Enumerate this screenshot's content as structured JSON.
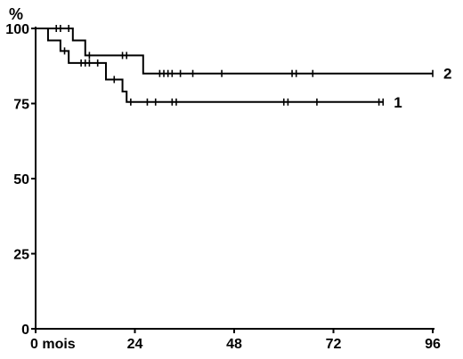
{
  "chart_data": {
    "type": "line",
    "title": "",
    "ylabel": "%",
    "xlabel": "",
    "xlim": [
      0,
      96
    ],
    "ylim": [
      0,
      100
    ],
    "x_ticks": [
      0,
      24,
      48,
      72,
      96
    ],
    "x_tick_labels": [
      "0 mois",
      "24",
      "48",
      "72",
      "96"
    ],
    "y_ticks": [
      0,
      25,
      50,
      75,
      100
    ],
    "y_tick_labels": [
      "0",
      "25",
      "50",
      "75",
      "100"
    ],
    "grid": false,
    "legend": "inline end-of-line labels",
    "series": [
      {
        "name": "1",
        "steps": [
          [
            0,
            100
          ],
          [
            3,
            96
          ],
          [
            6,
            92.5
          ],
          [
            8,
            88.5
          ],
          [
            17,
            83
          ],
          [
            21,
            79
          ],
          [
            22,
            75.5
          ],
          [
            84,
            75.5
          ]
        ],
        "censored": [
          7,
          11,
          12,
          13,
          15,
          19,
          23,
          27,
          29,
          33,
          34,
          60,
          61,
          68,
          83,
          84
        ]
      },
      {
        "name": "2",
        "steps": [
          [
            0,
            100
          ],
          [
            9,
            96
          ],
          [
            12,
            91
          ],
          [
            26,
            85
          ],
          [
            96,
            85
          ]
        ],
        "censored": [
          5,
          6,
          8,
          13,
          21,
          22,
          30,
          31,
          32,
          33,
          35,
          38,
          45,
          62,
          63,
          67,
          96
        ]
      }
    ]
  }
}
